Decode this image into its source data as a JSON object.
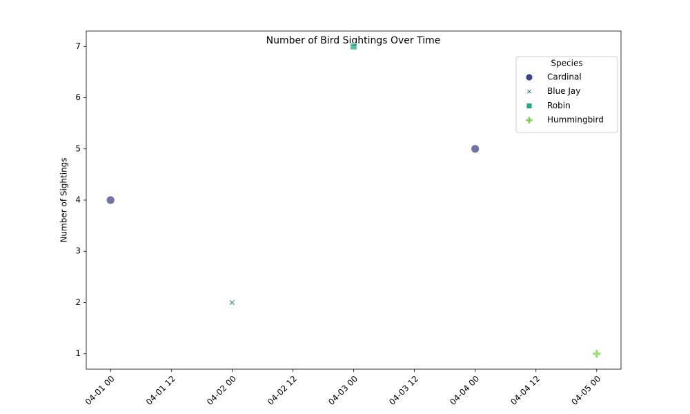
{
  "chart_data": {
    "type": "scatter",
    "title": "Number of Bird Sightings Over Time",
    "y_label": "Number of Sightings",
    "legend_title": "Species",
    "legend_position": "upper right",
    "series": [
      {
        "name": "Cardinal",
        "color": "#414487",
        "marker": "circle",
        "x": [
          "04-01 00",
          "04-04 00"
        ],
        "values": [
          4,
          5
        ]
      },
      {
        "name": "Blue Jay",
        "color": "#2a788e",
        "marker": "x",
        "x": [
          "04-02 00"
        ],
        "values": [
          2
        ]
      },
      {
        "name": "Robin",
        "color": "#22a884",
        "marker": "square",
        "x": [
          "04-03 00"
        ],
        "values": [
          7
        ]
      },
      {
        "name": "Hummingbird",
        "color": "#7ad151",
        "marker": "plus",
        "x": [
          "04-05 00"
        ],
        "values": [
          1
        ]
      }
    ],
    "xlim": [
      "03-31 19:12",
      "04-05 04:48"
    ],
    "xticks": [
      "04-01 00",
      "04-01 12",
      "04-02 00",
      "04-02 12",
      "04-03 00",
      "04-03 12",
      "04-04 00",
      "04-04 12",
      "04-05 00"
    ],
    "ylim": [
      0.7,
      7.3
    ],
    "yticks": [
      1,
      2,
      3,
      4,
      5,
      6,
      7
    ],
    "grid": false
  }
}
